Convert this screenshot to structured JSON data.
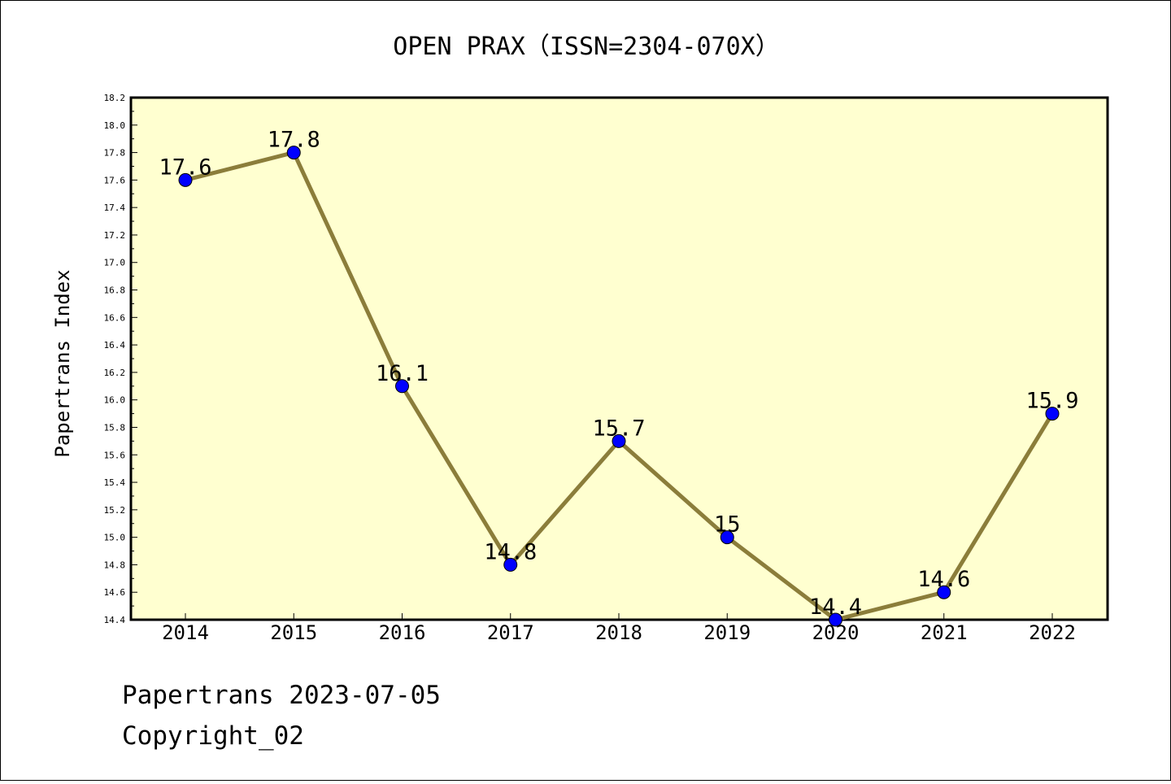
{
  "chart_data": {
    "type": "line",
    "title": "OPEN PRAX（ISSN=2304-070X）",
    "xlabel": "",
    "ylabel": "Papertrans Index",
    "categories": [
      "2014",
      "2015",
      "2016",
      "2017",
      "2018",
      "2019",
      "2020",
      "2021",
      "2022"
    ],
    "values": [
      17.6,
      17.8,
      16.1,
      14.8,
      15.7,
      15.0,
      14.4,
      14.6,
      15.9
    ],
    "data_labels": [
      "17.6",
      "17.8",
      "16.1",
      "14.8",
      "15.7",
      "15",
      "14.4",
      "14.6",
      "15.9"
    ],
    "ylim": [
      14.4,
      18.2
    ],
    "yticks": [
      "14.4",
      "14.6",
      "14.8",
      "15.0",
      "15.2",
      "15.4",
      "15.6",
      "15.8",
      "16.0",
      "16.2",
      "16.4",
      "16.6",
      "16.8",
      "17.0",
      "17.2",
      "17.4",
      "17.6",
      "17.8",
      "18.0",
      "18.2"
    ],
    "grid": false,
    "legend": "none",
    "colors": {
      "plot_background": "#ffffd0",
      "line": "#8b7d3a",
      "marker": "#0000ff"
    }
  },
  "footer": {
    "line1": "Papertrans 2023-07-05",
    "line2": "Copyright_02"
  }
}
